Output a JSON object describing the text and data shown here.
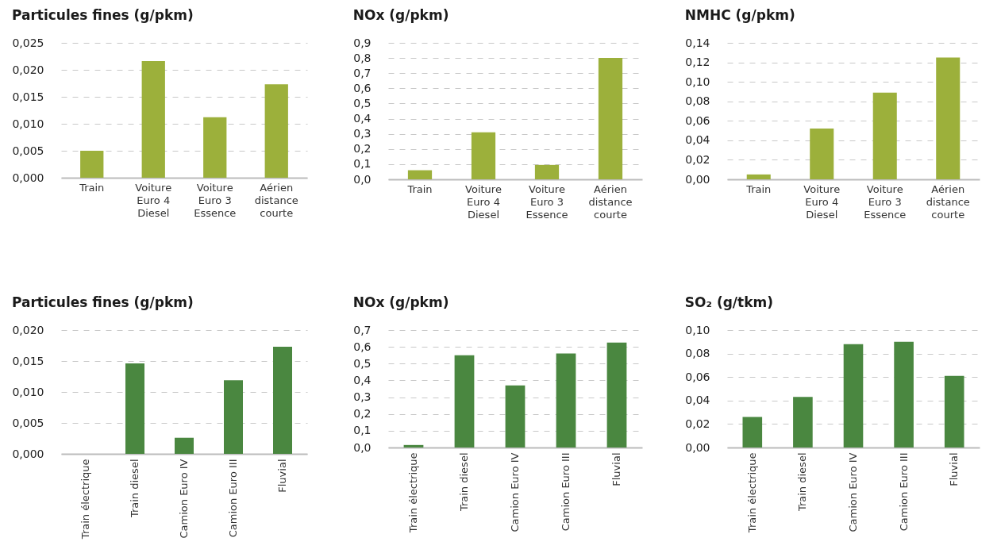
{
  "chart_data": [
    {
      "type": "bar",
      "title": "Particules fines (g/pkm)",
      "categories": [
        "Train",
        "Voiture Euro 4 Diesel",
        "Voiture Euro 3 Essence",
        "Aérien distance courte"
      ],
      "values": [
        0.005,
        0.0216,
        0.0112,
        0.0173
      ],
      "color": "#9cb03b",
      "ylim": [
        0,
        0.025
      ],
      "yticks": [
        {
          "value": 0,
          "label": "0,000"
        },
        {
          "value": 0.005,
          "label": "0,005"
        },
        {
          "value": 0.01,
          "label": "0,010"
        },
        {
          "value": 0.015,
          "label": "0,015"
        },
        {
          "value": 0.02,
          "label": "0,020"
        },
        {
          "value": 0.025,
          "label": "0,025"
        }
      ],
      "grid": "y"
    },
    {
      "type": "bar",
      "title": "NOx (g/pkm)",
      "categories": [
        "Train",
        "Voiture Euro 4 Diesel",
        "Voiture Euro 3 Essence",
        "Aérien distance courte"
      ],
      "values": [
        0.06,
        0.31,
        0.095,
        0.8
      ],
      "color": "#9cb03b",
      "ylim": [
        0,
        0.9
      ],
      "yticks": [
        {
          "value": 0,
          "label": "0,0"
        },
        {
          "value": 0.1,
          "label": "0,1"
        },
        {
          "value": 0.2,
          "label": "0,2"
        },
        {
          "value": 0.3,
          "label": "0,3"
        },
        {
          "value": 0.4,
          "label": "0,4"
        },
        {
          "value": 0.5,
          "label": "0,5"
        },
        {
          "value": 0.6,
          "label": "0,6"
        },
        {
          "value": 0.7,
          "label": "0,7"
        },
        {
          "value": 0.8,
          "label": "0,8"
        },
        {
          "value": 0.9,
          "label": "0,9"
        }
      ],
      "grid": "y"
    },
    {
      "type": "bar",
      "title": "NMHC (g/pkm)",
      "categories": [
        "Train",
        "Voiture Euro 4 Diesel",
        "Voiture Euro 3 Essence",
        "Aérien distance courte"
      ],
      "values": [
        0.005,
        0.052,
        0.089,
        0.125
      ],
      "color": "#9cb03b",
      "ylim": [
        0,
        0.14
      ],
      "yticks": [
        {
          "value": 0,
          "label": "0,00"
        },
        {
          "value": 0.02,
          "label": "0,02"
        },
        {
          "value": 0.04,
          "label": "0,04"
        },
        {
          "value": 0.06,
          "label": "0,06"
        },
        {
          "value": 0.08,
          "label": "0,08"
        },
        {
          "value": 0.1,
          "label": "0,10"
        },
        {
          "value": 0.12,
          "label": "0,12"
        },
        {
          "value": 0.14,
          "label": "0,14"
        }
      ],
      "grid": "y"
    },
    {
      "type": "bar",
      "title": "Particules fines (g/pkm)",
      "categories": [
        "Train électrique",
        "Train diesel",
        "Camion Euro IV",
        "Camion Euro III",
        "Fluvial"
      ],
      "values": [
        0,
        0.0146,
        0.0026,
        0.0119,
        0.0173
      ],
      "color": "#4a8740",
      "ylim": [
        0,
        0.02
      ],
      "yticks": [
        {
          "value": 0,
          "label": "0,000"
        },
        {
          "value": 0.005,
          "label": "0,005"
        },
        {
          "value": 0.01,
          "label": "0,010"
        },
        {
          "value": 0.015,
          "label": "0,015"
        },
        {
          "value": 0.02,
          "label": "0,020"
        }
      ],
      "grid": "y"
    },
    {
      "type": "bar",
      "title": "NOx (g/pkm)",
      "categories": [
        "Train électrique",
        "Train diesel",
        "Camion Euro IV",
        "Camion Euro III",
        "Fluvial"
      ],
      "values": [
        0.015,
        0.55,
        0.37,
        0.56,
        0.625
      ],
      "color": "#4a8740",
      "ylim": [
        0,
        0.7
      ],
      "yticks": [
        {
          "value": 0,
          "label": "0,0"
        },
        {
          "value": 0.1,
          "label": "0,1"
        },
        {
          "value": 0.2,
          "label": "0,2"
        },
        {
          "value": 0.3,
          "label": "0,3"
        },
        {
          "value": 0.4,
          "label": "0,4"
        },
        {
          "value": 0.5,
          "label": "0,5"
        },
        {
          "value": 0.6,
          "label": "0,6"
        },
        {
          "value": 0.7,
          "label": "0,7"
        }
      ],
      "grid": "y"
    },
    {
      "type": "bar",
      "title": "SO₂ (g/tkm)",
      "categories": [
        "Train électrique",
        "Train diesel",
        "Camion Euro IV",
        "Camion Euro III",
        "Fluvial"
      ],
      "values": [
        0.026,
        0.043,
        0.088,
        0.09,
        0.061
      ],
      "color": "#4a8740",
      "ylim": [
        0,
        0.1
      ],
      "yticks": [
        {
          "value": 0,
          "label": "0,00"
        },
        {
          "value": 0.02,
          "label": "0,02"
        },
        {
          "value": 0.04,
          "label": "0,04"
        },
        {
          "value": 0.06,
          "label": "0,06"
        },
        {
          "value": 0.08,
          "label": "0,08"
        },
        {
          "value": 0.1,
          "label": "0,10"
        }
      ],
      "grid": "y"
    }
  ]
}
